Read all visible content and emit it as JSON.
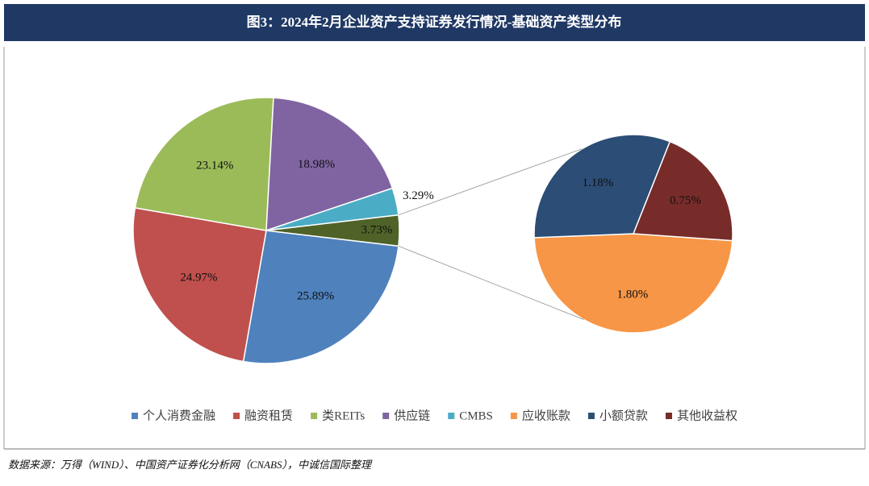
{
  "chart_data": {
    "type": "pie_of_pie",
    "title": "图3：2024年2月企业资产支持证券发行情况-基础资产类型分布",
    "source": "数据来源：万得（WIND）、中国资产证券化分析网（CNABS），中诚信国际整理",
    "primary": {
      "categories": [
        "个人消费金融",
        "融资租赁",
        "类REITs",
        "供应链",
        "CMBS",
        null
      ],
      "values": [
        25.89,
        24.97,
        23.14,
        18.98,
        3.29,
        3.73
      ],
      "value_labels": [
        "25.89%",
        "24.97%",
        "23.14%",
        "18.98%",
        "3.29%",
        "3.73%"
      ],
      "colors": [
        "#4f81bd",
        "#c0504d",
        "#9bbb59",
        "#8064a2",
        "#4bacc6",
        "#4f6228"
      ]
    },
    "secondary": {
      "categories": [
        "应收账款",
        "小额贷款",
        "其他收益权"
      ],
      "values": [
        1.8,
        1.18,
        0.75
      ],
      "value_labels": [
        "1.80%",
        "1.18%",
        "0.75%"
      ],
      "colors": [
        "#f79646",
        "#2c4d75",
        "#772c2a"
      ]
    }
  }
}
